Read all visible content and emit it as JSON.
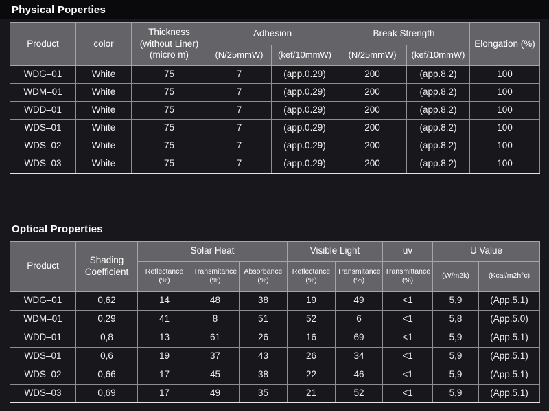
{
  "colors": {
    "page_bg": "#17171c",
    "title_band_bg": "#0a0a0d",
    "header_cell_bg": "#646468",
    "grid_line": "#8e8e92",
    "header_grid_line": "#a6a6aa",
    "text": "#efefef"
  },
  "physical": {
    "title": "Physical Poperties",
    "headers": {
      "product": "Product",
      "color": "color",
      "thickness": "Thickness\n(without Liner)\n(micro m)",
      "adhesion": "Adhesion",
      "break_strength": "Break Strength",
      "elongation": "Elongation (%)",
      "n25": "(N/25mmW)",
      "kef10": "(kef/10mmW)"
    },
    "rows": [
      [
        "WDG–01",
        "White",
        "75",
        "7",
        "(app.0.29)",
        "200",
        "(app.8.2)",
        "100"
      ],
      [
        "WDM–01",
        "White",
        "75",
        "7",
        "(app.0.29)",
        "200",
        "(app.8.2)",
        "100"
      ],
      [
        "WDD–01",
        "White",
        "75",
        "7",
        "(app.0.29)",
        "200",
        "(app.8.2)",
        "100"
      ],
      [
        "WDS–01",
        "White",
        "75",
        "7",
        "(app.0.29)",
        "200",
        "(app.8.2)",
        "100"
      ],
      [
        "WDS–02",
        "White",
        "75",
        "7",
        "(app.0.29)",
        "200",
        "(app.8.2)",
        "100"
      ],
      [
        "WDS–03",
        "White",
        "75",
        "7",
        "(app.0.29)",
        "200",
        "(app.8.2)",
        "100"
      ]
    ]
  },
  "optical": {
    "title": "Optical Properties",
    "headers": {
      "product": "Product",
      "shading": "Shading\nCoefficient",
      "solar_heat": "Solar Heat",
      "visible_light": "Visible Light",
      "uv": "uv",
      "u_value": "U Value",
      "reflectance": "Reflectance\n(%)",
      "transmitance": "Transmitance\n(%)",
      "absorbance": "Absorbance\n(%)",
      "uv_transmittance": "Transmittance\n(%)",
      "w_m2k": "(W/m2k)",
      "kcal_m2hc": "(Kcal/m2h°c)"
    },
    "rows": [
      [
        "WDG–01",
        "0,62",
        "14",
        "48",
        "38",
        "19",
        "49",
        "<1",
        "5,9",
        "(App.5.1)"
      ],
      [
        "WDM–01",
        "0,29",
        "41",
        "8",
        "51",
        "52",
        "6",
        "<1",
        "5,8",
        "(App.5.0)"
      ],
      [
        "WDD–01",
        "0,8",
        "13",
        "61",
        "26",
        "16",
        "69",
        "<1",
        "5,9",
        "(App.5.1)"
      ],
      [
        "WDS–01",
        "0,6",
        "19",
        "37",
        "43",
        "26",
        "34",
        "<1",
        "5,9",
        "(App.5.1)"
      ],
      [
        "WDS–02",
        "0,66",
        "17",
        "45",
        "38",
        "22",
        "46",
        "<1",
        "5,9",
        "(App.5.1)"
      ],
      [
        "WDS–03",
        "0,69",
        "17",
        "49",
        "35",
        "21",
        "52",
        "<1",
        "5,9",
        "(App.5.1)"
      ]
    ]
  }
}
